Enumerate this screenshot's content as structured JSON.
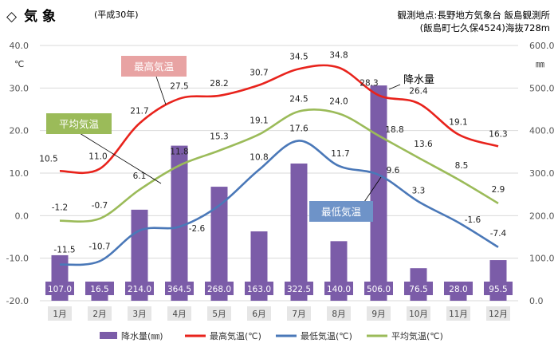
{
  "header": {
    "title_mark": "◇",
    "title": "気 象",
    "subtitle": "(平成30年)",
    "location_line1": "観測地点:長野地方気象台 飯島観測所",
    "location_line2": "(飯島町七久保4524)海抜728m"
  },
  "chart_data": {
    "type": "bar+line",
    "categories": [
      "1月",
      "2月",
      "3月",
      "4月",
      "5月",
      "6月",
      "7月",
      "8月",
      "9月",
      "10月",
      "11月",
      "12月"
    ],
    "left_axis": {
      "unit": "℃",
      "ylim": [
        -20,
        40
      ],
      "ticks": [
        "-20.0",
        "-10.0",
        "0.0",
        "10.0",
        "20.0",
        "30.0",
        "40.0"
      ]
    },
    "right_axis": {
      "unit": "㎜",
      "ylim": [
        0,
        600
      ],
      "ticks": [
        "0.0",
        "100.0",
        "200.0",
        "300.0",
        "400.0",
        "500.0",
        "600.0"
      ]
    },
    "series": [
      {
        "name": "降水量(㎜)",
        "kind": "bar",
        "axis": "right",
        "color": "#7b5ca8",
        "values": [
          107.0,
          16.5,
          214.0,
          364.5,
          268.0,
          163.0,
          322.5,
          140.0,
          506.0,
          76.5,
          28.0,
          95.5
        ],
        "labels": [
          "107.0",
          "16.5",
          "214.0",
          "364.5",
          "268.0",
          "163.0",
          "322.5",
          "140.0",
          "506.0",
          "76.5",
          "28.0",
          "95.5"
        ]
      },
      {
        "name": "最高気温(℃)",
        "kind": "line",
        "axis": "left",
        "color": "#e8231c",
        "values": [
          10.5,
          11.0,
          21.7,
          27.5,
          28.2,
          30.7,
          34.5,
          34.8,
          28.3,
          26.4,
          19.1,
          16.3
        ],
        "labels": [
          "10.5",
          "11.0",
          "21.7",
          "27.5",
          "28.2",
          "30.7",
          "34.5",
          "34.8",
          "28.3",
          "26.4",
          "19.1",
          "16.3"
        ]
      },
      {
        "name": "最低気温(℃)",
        "kind": "line",
        "axis": "left",
        "color": "#4a78b8",
        "values": [
          -11.5,
          -10.7,
          -3.5,
          -2.6,
          2.4,
          10.8,
          17.6,
          11.7,
          9.6,
          3.3,
          -1.6,
          -7.4
        ],
        "labels": [
          "-11.5",
          "-10.7",
          "",
          "-2.6",
          "",
          "10.8",
          "17.6",
          "11.7",
          "9.6",
          "3.3",
          "-1.6",
          "-7.4"
        ]
      },
      {
        "name": "平均気温(℃)",
        "kind": "line",
        "axis": "left",
        "color": "#9bbb59",
        "values": [
          -1.2,
          -0.7,
          6.1,
          11.8,
          15.3,
          19.1,
          24.5,
          24.0,
          18.8,
          13.6,
          8.5,
          2.9
        ],
        "labels": [
          "-1.2",
          "-0.7",
          "6.1",
          "11.8",
          "15.3",
          "19.1",
          "24.5",
          "24.0",
          "18.8",
          "13.6",
          "8.5",
          "2.9"
        ]
      }
    ],
    "callouts": {
      "max": "最高気温",
      "avg": "平均気温",
      "min": "最低気温",
      "precip": "降水量"
    },
    "legend": {
      "position": "bottom",
      "items": [
        {
          "label": "降水量(㎜)",
          "color": "#7b5ca8",
          "kind": "bar"
        },
        {
          "label": "最高気温(℃)",
          "color": "#e8231c",
          "kind": "line"
        },
        {
          "label": "最低気温(℃)",
          "color": "#4a78b8",
          "kind": "line"
        },
        {
          "label": "平均気温(℃)",
          "color": "#9bbb59",
          "kind": "line"
        }
      ]
    },
    "callout_colors": {
      "max": "#e8a3a3",
      "avg": "#9bbb59",
      "min": "#6e93c8"
    },
    "grid": true
  }
}
